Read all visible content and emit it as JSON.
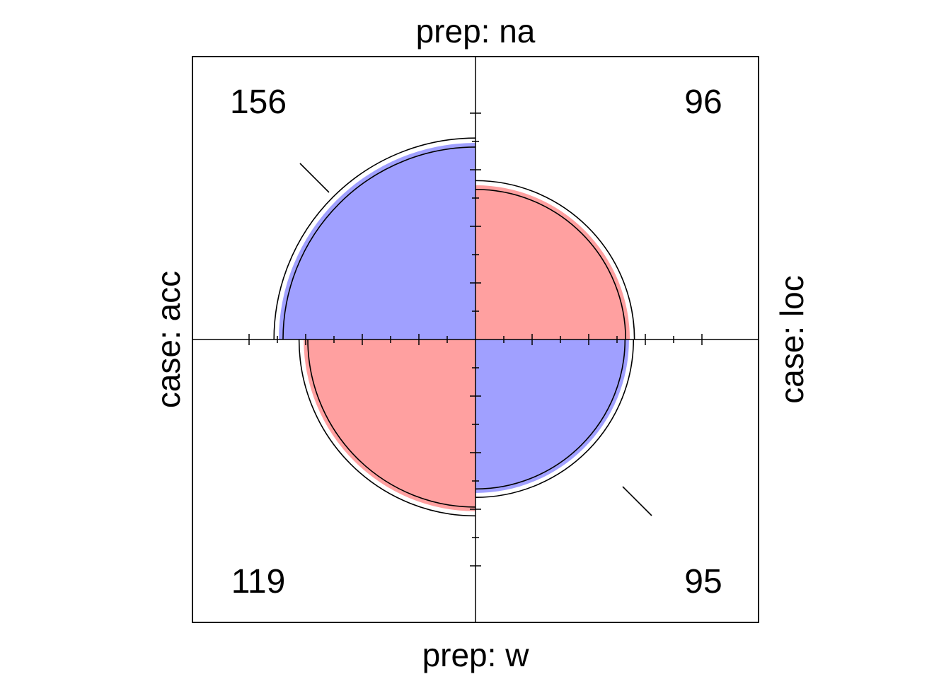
{
  "chart_data": {
    "type": "fourfold",
    "title": "",
    "row_variable": "case",
    "col_variable": "prep",
    "labels": {
      "top": "prep: na",
      "bottom": "prep: w",
      "left": "case: acc",
      "right": "case: loc"
    },
    "cells": {
      "top_left": {
        "case": "acc",
        "prep": "na",
        "count": "156"
      },
      "top_right": {
        "case": "loc",
        "prep": "na",
        "count": "96"
      },
      "bottom_left": {
        "case": "acc",
        "prep": "w",
        "count": "119"
      },
      "bottom_right": {
        "case": "loc",
        "prep": "w",
        "count": "95"
      }
    },
    "values": {
      "top_left": 156,
      "top_right": 96,
      "bottom_left": 119,
      "bottom_right": 95
    },
    "confidence_rings": true,
    "colors": {
      "positive": "#a0a0ff",
      "negative": "#ffa0a0",
      "stroke": "#000000"
    }
  }
}
